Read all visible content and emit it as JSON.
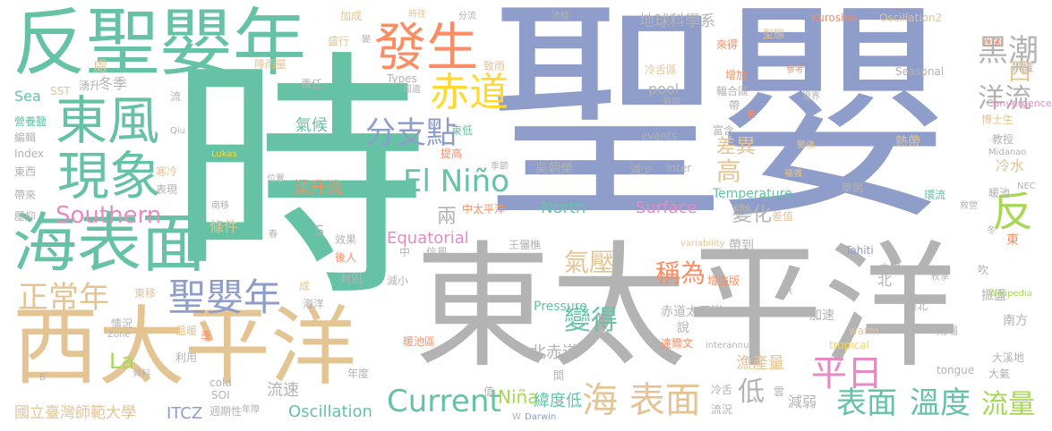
{
  "words": {
    "shi": "時",
    "sheng_ying": "聖嬰",
    "dong_taipingyang": "東太平洋",
    "fan_sheng_ying_nian": "反聖嬰年",
    "xi_taipingyang": "西太平洋",
    "hai_biaomian": "海表面",
    "dong_feng": "東風",
    "xian_xiang": "現象",
    "fa_sheng": "發生",
    "chi_dao": "赤道",
    "sheng_ying_nian": "聖嬰年",
    "zheng_chang_nian": "正常年",
    "southern": "Southern",
    "el_nino": "El Niño",
    "fen_zhi_dian": "分支點",
    "fan": "反",
    "hei_chao": "黑潮",
    "xi": "西",
    "yang_liu": "洋流",
    "ping_ri": "平日",
    "biao_mian": "表面",
    "wen_du": "溫度",
    "liu_liang": "流量",
    "current": "Current",
    "hai_biaomian_spaced": "海 表面",
    "qi_ya": "氣壓",
    "cheng_wei": "稱為",
    "bian_de": "變得",
    "nina": "Niña",
    "la": "La",
    "oscillation": "Oscillation",
    "itcz": "ITCZ",
    "guoli": "國立臺灣師範大學",
    "di_qiu": "地球科學系",
    "surface": "Surface",
    "north": "North",
    "equatorial": "Equatorial",
    "yong_sheng_liu": "湧升流",
    "qi_hou": "氣候",
    "liang": "兩",
    "bian_hua": "變化",
    "cha_yi": "差異",
    "gao": "高",
    "di": "低",
    "yu_chan_liang": "漁產量",
    "bei_chi_dao": "北赤道",
    "liu_su": "流速",
    "wei_du_di": "緯度低",
    "jian_ruo": "減弱",
    "leng_shui": "冷水",
    "tiao_jian": "條件",
    "dong_di": "東低",
    "ti_gao": "提高",
    "wu_chao_rong": "吳朝榮",
    "wang_li_qiao": "王儷樵",
    "dong_fang": "東方",
    "chu": "處",
    "dong_ji": "冬季",
    "yong_sheng": "湧升",
    "sea": "Sea",
    "sst": "SST",
    "ying_yang_yan": "營養鹽",
    "bian_ji": "編輯",
    "index": "Index",
    "dong_xi": "東西",
    "dai_lai": "帶來",
    "ya_yi": "壓抑",
    "han_leng": "寒冷",
    "biao_xian": "表現",
    "wen_nuan": "溫暖",
    "zi_liao": "資料",
    "li_yong": "利用",
    "qing_kuang": "情況",
    "dong_yi": "東移",
    "cold": "cold",
    "soi": "SOI",
    "zhou_qi_xing": "週期性",
    "nian_ji": "年際",
    "ze_ren": "責任",
    "xiao_guo": "效果",
    "hou_ren": "後人",
    "pan_bie": "判別",
    "jian_xiao": "減小",
    "hai_yang": "海洋",
    "nuan_chi_qu": "暖池區",
    "nian_du": "年度",
    "jian": "間",
    "zhi": "值",
    "xin_feng": "信風",
    "zhong": "中",
    "zhong_taipingyang": "中太平洋",
    "pressure": "Pressure",
    "chi_dao_taipingyang": "赤道太平洋",
    "shuo": "說",
    "da_er_wen": "達爾文",
    "leng_she": "冷舌",
    "liu_kuang": "流況",
    "darwin": "Darwin",
    "yun": "雲",
    "zhen_dang": "振盪",
    "yu_chang": "雨場",
    "da_qi": "大氣",
    "da_xi_di": "大溪地",
    "nan_fang": "南方",
    "jia_su": "加速",
    "nan_bei": "南北",
    "zeng_qiang_ban": "增強版",
    "zhi_jian": "之間",
    "chui": "吹",
    "dai_dao": "帶到",
    "tahiti": "Tahiti",
    "re_dai": "熱帶",
    "bian_qiang": "變強",
    "jiao_shou": "教授",
    "bo_shi_sheng": "博士生",
    "bian_jie": "邊界",
    "fu_he_qu": "輻合區",
    "can_kao": "參考",
    "zeng_jia": "增加",
    "lai_de": "來得",
    "tai_wan": "台灣",
    "kuroshio": "Kuroshio",
    "oscillation2": "Oscillation2",
    "seasonal": "Seasonal",
    "convergence": "Convergence",
    "bian_shi": "辨識",
    "fu_qiang": "福強",
    "nuan_chi": "暖池",
    "nec": "NEC",
    "ju_li": "舉例",
    "huan_liu": "環流",
    "wikipedia": "Wikipedia",
    "jiu_ying": "救營",
    "temperature": "Temperature",
    "pool": "pool",
    "events": "events",
    "types": "Types",
    "zhou_xuan": "周遺",
    "lukas": "Lukas",
    "qiu": "Qiu",
    "fu_nan": "偏南",
    "fu_he": "富含",
    "jian_shao": "減少",
    "inter": "Inter",
    "variability": "variability",
    "interannual": "interannual",
    "warm": "warm",
    "tropical": "tropical",
    "tongue": "tongue",
    "zone": "Zone",
    "wei_zhi": "位置",
    "nan_yi": "南移",
    "chun": "春",
    "cheng": "成",
    "r": "R",
    "e": "E",
    "s": "S",
    "w": "W",
    "b": "B",
    "ji": "季",
    "bei": "北",
    "dong": "東",
    "dong2": "冬",
    "liu": "流",
    "sheng_xing": "盛行",
    "bian": "變",
    "jia_cheng": "加成",
    "shi_wang": "時往",
    "fen_liu": "分流",
    "liu_jing": "流經",
    "xing_tai": "型態",
    "leng_she_qu": "冷舌區",
    "shi_jie": "季節",
    "zhi_yu": "致雨",
    "jiang_yu_liang": "降雨量",
    "geng": "更",
    "dai": "帶",
    "midanao": "Midanao",
    "qiu_ji": "秋季",
    "cha_zhi": "差值"
  }
}
